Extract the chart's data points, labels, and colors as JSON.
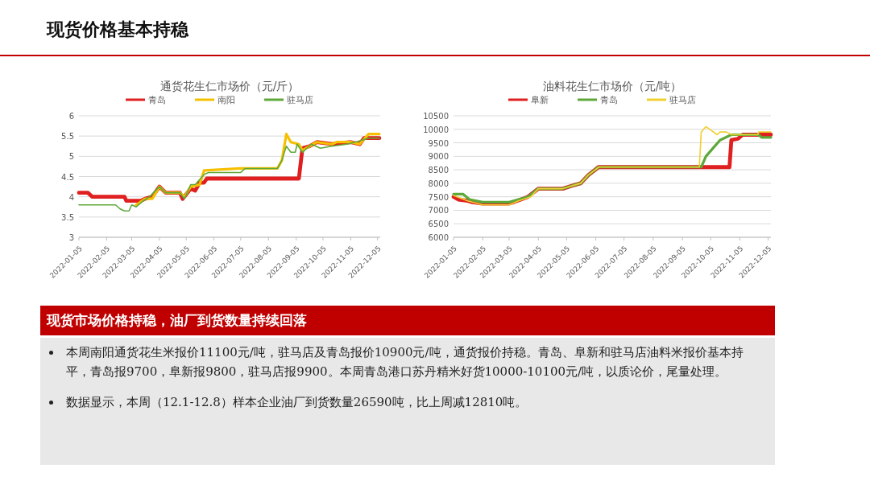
{
  "chart_data": [
    {
      "type": "other",
      "title": "现货价格基本持稳"
    },
    {
      "type": "line",
      "title": "通货花生仁市场价（元/斤）",
      "legend": "top",
      "grid": "y",
      "xlim": [
        "2022-01-05",
        "2022-12-08"
      ],
      "ylim": [
        3,
        6
      ],
      "yticks": [
        3,
        3.5,
        4,
        4.5,
        5,
        5.5,
        6
      ],
      "xticks": [
        "2022-01-05",
        "2022-02-05",
        "2022-03-05",
        "2022-04-05",
        "2022-05-05",
        "2022-06-05",
        "2022-07-05",
        "2022-08-05",
        "2022-09-05",
        "2022-10-05",
        "2022-11-05",
        "2022-12-05"
      ],
      "series": [
        {
          "name": "青岛",
          "color": "#e02020",
          "x": [
            "2022-01-05",
            "2022-01-15",
            "2022-01-20",
            "2022-02-25",
            "2022-02-27",
            "2022-03-15",
            "2022-03-20",
            "2022-03-28",
            "2022-04-05",
            "2022-04-12",
            "2022-04-28",
            "2022-05-01",
            "2022-05-10",
            "2022-05-15",
            "2022-05-20",
            "2022-05-25",
            "2022-05-28",
            "2022-09-08",
            "2022-09-12",
            "2022-09-20",
            "2022-09-28",
            "2022-10-15",
            "2022-11-05",
            "2022-11-15",
            "2022-11-20",
            "2022-12-07"
          ],
          "values": [
            4.1,
            4.1,
            4.0,
            4.0,
            3.9,
            3.9,
            3.95,
            4.0,
            4.25,
            4.1,
            4.1,
            3.95,
            4.2,
            4.15,
            4.35,
            4.35,
            4.45,
            4.45,
            5.2,
            5.25,
            5.35,
            5.3,
            5.35,
            5.3,
            5.45,
            5.45
          ]
        },
        {
          "name": "南阳",
          "color": "#f5c000",
          "x": [
            "2022-03-10",
            "2022-03-20",
            "2022-03-28",
            "2022-04-05",
            "2022-04-12",
            "2022-04-28",
            "2022-05-03",
            "2022-05-10",
            "2022-05-20",
            "2022-05-25",
            "2022-07-05",
            "2022-08-15",
            "2022-08-20",
            "2022-08-25",
            "2022-08-30",
            "2022-09-08",
            "2022-09-12",
            "2022-09-20",
            "2022-09-28",
            "2022-10-15",
            "2022-10-20",
            "2022-11-05",
            "2022-11-15",
            "2022-11-25",
            "2022-12-07"
          ],
          "values": [
            3.8,
            3.95,
            3.95,
            4.25,
            4.1,
            4.1,
            4.0,
            4.25,
            4.3,
            4.65,
            4.7,
            4.7,
            4.9,
            5.55,
            5.35,
            5.3,
            5.15,
            5.25,
            5.35,
            5.3,
            5.35,
            5.35,
            5.3,
            5.55,
            5.55
          ]
        },
        {
          "name": "驻马店",
          "color": "#5ea83a",
          "x": [
            "2022-01-05",
            "2022-02-15",
            "2022-02-20",
            "2022-02-25",
            "2022-03-02",
            "2022-03-05",
            "2022-03-10",
            "2022-03-18",
            "2022-03-25",
            "2022-04-05",
            "2022-04-12",
            "2022-04-28",
            "2022-05-03",
            "2022-05-10",
            "2022-05-15",
            "2022-05-25",
            "2022-05-30",
            "2022-07-05",
            "2022-07-10",
            "2022-08-15",
            "2022-08-20",
            "2022-08-25",
            "2022-08-30",
            "2022-09-04",
            "2022-09-06",
            "2022-09-12",
            "2022-09-22",
            "2022-10-02",
            "2022-10-15",
            "2022-11-01",
            "2022-11-10",
            "2022-11-25",
            "2022-12-07"
          ],
          "values": [
            3.8,
            3.8,
            3.7,
            3.65,
            3.65,
            3.8,
            3.75,
            3.9,
            4.0,
            4.25,
            4.1,
            4.1,
            3.95,
            4.3,
            4.3,
            4.55,
            4.6,
            4.6,
            4.7,
            4.7,
            4.9,
            5.25,
            5.1,
            5.1,
            5.3,
            5.1,
            5.3,
            5.2,
            5.25,
            5.3,
            5.35,
            5.45,
            5.45
          ]
        }
      ]
    },
    {
      "type": "line",
      "title": "油料花生仁市场价（元/吨）",
      "legend": "top",
      "grid": "y",
      "xlim": [
        "2022-01-05",
        "2022-12-08"
      ],
      "ylim": [
        6000,
        10500
      ],
      "yticks": [
        6000,
        6500,
        7000,
        7500,
        8000,
        8500,
        9000,
        9500,
        10000,
        10500
      ],
      "xticks": [
        "2022-01-05",
        "2022-02-05",
        "2022-03-05",
        "2022-04-05",
        "2022-05-05",
        "2022-06-05",
        "2022-07-05",
        "2022-08-05",
        "2022-09-05",
        "2022-10-05",
        "2022-11-05",
        "2022-12-05"
      ],
      "series": [
        {
          "name": "阜新",
          "color": "#e02020",
          "x": [
            "2022-01-05",
            "2022-01-10",
            "2022-01-20",
            "2022-01-25",
            "2022-02-05",
            "2022-03-05",
            "2022-03-10",
            "2022-03-25",
            "2022-04-05",
            "2022-05-01",
            "2022-05-10",
            "2022-05-20",
            "2022-05-28",
            "2022-06-08",
            "2022-10-25",
            "2022-10-27",
            "2022-11-03",
            "2022-11-08",
            "2022-12-08"
          ],
          "values": [
            7500,
            7400,
            7350,
            7300,
            7250,
            7250,
            7300,
            7500,
            7800,
            7800,
            7900,
            8000,
            8300,
            8600,
            8600,
            9600,
            9650,
            9800,
            9800
          ]
        },
        {
          "name": "青岛",
          "color": "#5ea83a",
          "x": [
            "2022-01-05",
            "2022-01-15",
            "2022-01-22",
            "2022-02-05",
            "2022-03-05",
            "2022-03-15",
            "2022-03-25",
            "2022-04-05",
            "2022-05-01",
            "2022-05-10",
            "2022-05-20",
            "2022-05-28",
            "2022-06-08",
            "2022-09-25",
            "2022-09-30",
            "2022-10-10",
            "2022-10-15",
            "2022-10-27",
            "2022-11-25",
            "2022-11-28",
            "2022-12-08"
          ],
          "values": [
            7600,
            7600,
            7400,
            7300,
            7300,
            7400,
            7500,
            7800,
            7800,
            7900,
            8000,
            8300,
            8600,
            8600,
            9000,
            9400,
            9600,
            9800,
            9800,
            9700,
            9700
          ]
        },
        {
          "name": "驻马店",
          "color": "#f0d030",
          "x": [
            "2022-01-05",
            "2022-01-20",
            "2022-02-05",
            "2022-03-05",
            "2022-03-15",
            "2022-03-28",
            "2022-04-05",
            "2022-05-01",
            "2022-05-10",
            "2022-05-20",
            "2022-05-28",
            "2022-06-08",
            "2022-09-23",
            "2022-09-25",
            "2022-09-30",
            "2022-10-12",
            "2022-10-15",
            "2022-10-22",
            "2022-10-27",
            "2022-11-24",
            "2022-11-25",
            "2022-12-08"
          ],
          "values": [
            7550,
            7350,
            7200,
            7200,
            7350,
            7500,
            7800,
            7800,
            7900,
            8000,
            8300,
            8600,
            8600,
            9900,
            10100,
            9800,
            9900,
            9900,
            9800,
            9800,
            9900,
            9900
          ]
        }
      ]
    },
    {
      "type": "other",
      "title": "现货市场价格持稳，油厂到货数量持续回落",
      "annotations": [
        "本周南阳通货花生米报价11100元/吨，驻马店及青岛报价10900元/吨，通货报价持稳。青岛、阜新和驻马店油料米报价基本持平，青岛报9700，阜新报9800，驻马店报9900。本周青岛港口苏丹精米好货10000-10100元/吨，以质论价，尾量处理。",
        "数据显示，本周（12.1-12.8）样本企业油厂到货数量26590吨，比上周减12810吨。"
      ]
    }
  ]
}
